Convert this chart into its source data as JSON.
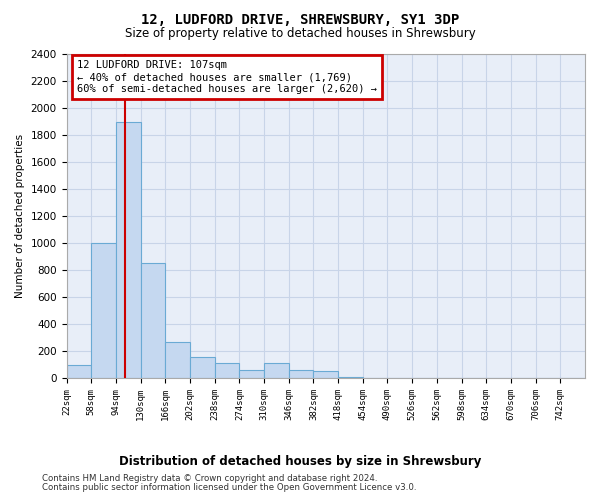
{
  "title": "12, LUDFORD DRIVE, SHREWSBURY, SY1 3DP",
  "subtitle": "Size of property relative to detached houses in Shrewsbury",
  "xlabel": "Distribution of detached houses by size in Shrewsbury",
  "ylabel": "Number of detached properties",
  "bin_edges": [
    22,
    58,
    94,
    130,
    166,
    202,
    238,
    274,
    310,
    346,
    382,
    418,
    454,
    490,
    526,
    562,
    598,
    634,
    670,
    706,
    742,
    778
  ],
  "bin_heights": [
    100,
    1000,
    1900,
    850,
    270,
    155,
    115,
    60,
    115,
    60,
    50,
    10,
    0,
    0,
    0,
    0,
    0,
    0,
    0,
    0,
    0
  ],
  "bar_color": "#c5d8f0",
  "bar_edge_color": "#6aaad4",
  "ylim": [
    0,
    2400
  ],
  "yticks": [
    0,
    200,
    400,
    600,
    800,
    1000,
    1200,
    1400,
    1600,
    1800,
    2000,
    2200,
    2400
  ],
  "xtick_starts": [
    22,
    58,
    94,
    130,
    166,
    202,
    238,
    274,
    310,
    346,
    382,
    418,
    454,
    490,
    526,
    562,
    598,
    634,
    670,
    706,
    742
  ],
  "property_size": 107,
  "red_line_color": "#cc0000",
  "annotation_title": "12 LUDFORD DRIVE: 107sqm",
  "annotation_line2": "← 40% of detached houses are smaller (1,769)",
  "annotation_line3": "60% of semi-detached houses are larger (2,620) →",
  "annotation_box_color": "#ffffff",
  "annotation_box_edge": "#cc0000",
  "grid_color": "#c8d4e8",
  "bg_color": "#e8eef8",
  "footer1": "Contains HM Land Registry data © Crown copyright and database right 2024.",
  "footer2": "Contains public sector information licensed under the Open Government Licence v3.0."
}
